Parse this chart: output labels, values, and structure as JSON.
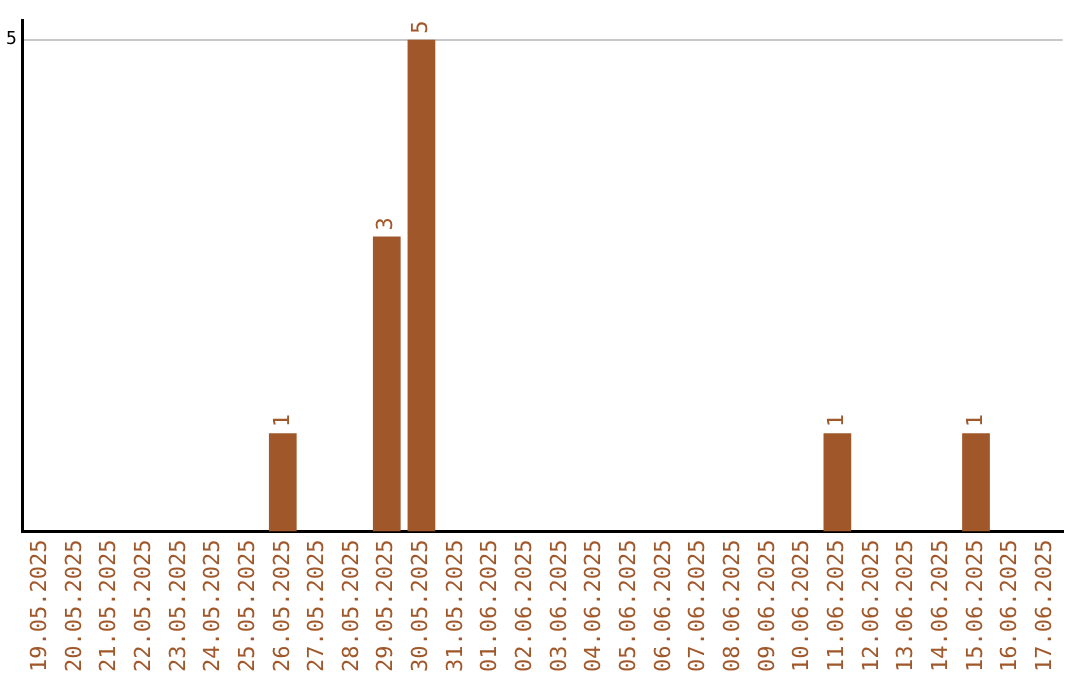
{
  "chart_data": {
    "type": "bar",
    "categories": [
      "19.05.2025",
      "20.05.2025",
      "21.05.2025",
      "22.05.2025",
      "23.05.2025",
      "24.05.2025",
      "25.05.2025",
      "26.05.2025",
      "27.05.2025",
      "28.05.2025",
      "29.05.2025",
      "30.05.2025",
      "31.05.2025",
      "01.06.2025",
      "02.06.2025",
      "03.06.2025",
      "04.06.2025",
      "05.06.2025",
      "06.06.2025",
      "07.06.2025",
      "08.06.2025",
      "09.06.2025",
      "10.06.2025",
      "11.06.2025",
      "12.06.2025",
      "13.06.2025",
      "14.06.2025",
      "15.06.2025",
      "16.06.2025",
      "17.06.2025"
    ],
    "values": [
      0,
      0,
      0,
      0,
      0,
      0,
      0,
      1,
      0,
      0,
      3,
      5,
      0,
      0,
      0,
      0,
      0,
      0,
      0,
      0,
      0,
      0,
      0,
      1,
      0,
      0,
      0,
      1,
      0,
      0
    ],
    "value_labels": [
      null,
      null,
      null,
      null,
      null,
      null,
      null,
      "1",
      null,
      null,
      "3",
      "5",
      null,
      null,
      null,
      null,
      null,
      null,
      null,
      null,
      null,
      null,
      null,
      "1",
      null,
      null,
      null,
      "1",
      null,
      null
    ],
    "color": "#a0572a",
    "ylim": [
      0,
      5.2
    ],
    "yticks": [
      5
    ],
    "grid": "y",
    "legend": false
  }
}
